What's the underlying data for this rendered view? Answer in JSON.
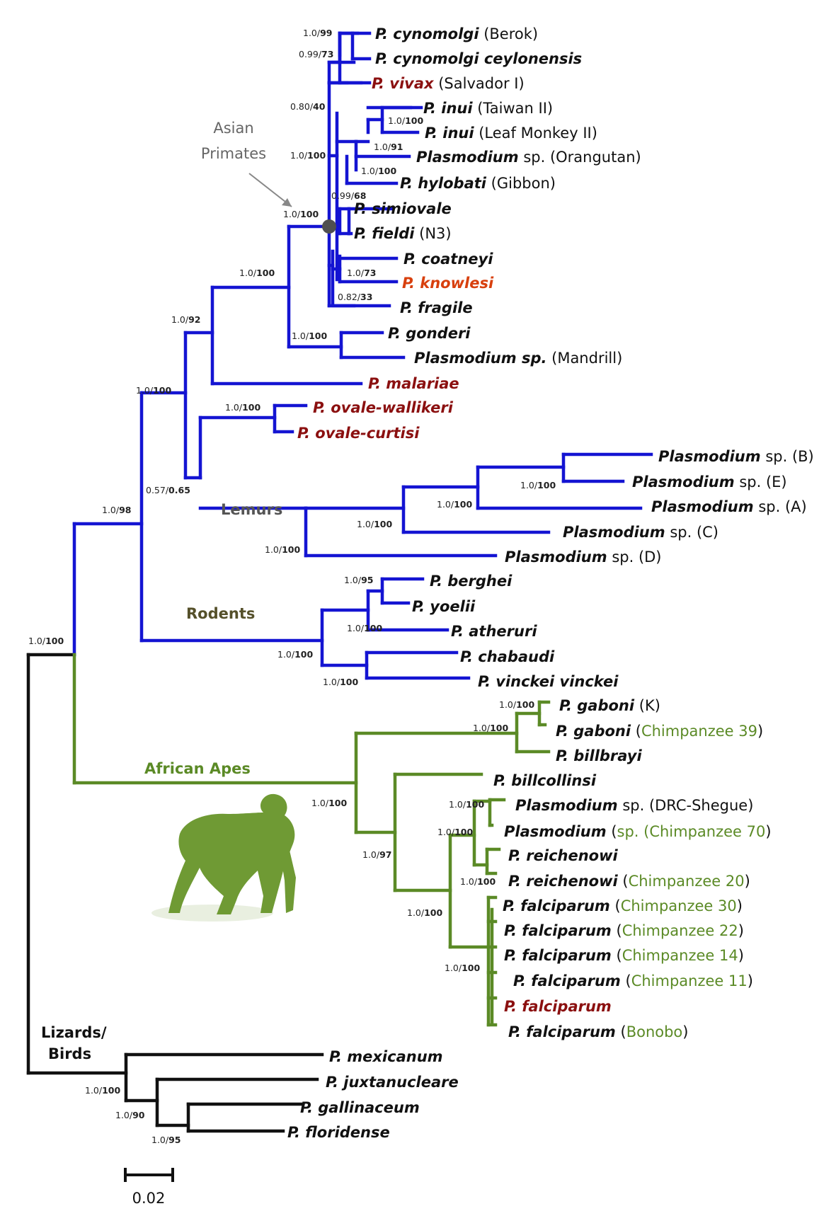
{
  "colors": {
    "blue": "#1414d2",
    "green": "#5b8a26",
    "black": "#111111",
    "red": "#8b1010",
    "orange": "#d8400e",
    "gray": "#666666",
    "node": "#505050"
  },
  "groups": {
    "asian_primates": "Asian\nPrimates",
    "lemurs": "Lemurs",
    "rodents": "Rodents",
    "african_apes": "African Apes",
    "lizards_birds": "Lizards/\nBirds"
  },
  "scale": {
    "label": "0.02"
  },
  "chimp_icon": "chimpanzee-silhouette-icon",
  "supports": [
    {
      "id": "s1",
      "text": "1.0/99"
    },
    {
      "id": "s2",
      "text": "0.99/73"
    },
    {
      "id": "s3",
      "text": "0.80/40"
    },
    {
      "id": "s4",
      "text": "1.0/100"
    },
    {
      "id": "s5",
      "text": "1.0/91"
    },
    {
      "id": "s6",
      "text": "1.0/100"
    },
    {
      "id": "s7",
      "text": "0.99/68"
    },
    {
      "id": "s8",
      "text": "1.0/100"
    },
    {
      "id": "s9",
      "text": "1.0/73"
    },
    {
      "id": "s10",
      "text": "0.82/33"
    },
    {
      "id": "s11",
      "text": "1.0/100"
    },
    {
      "id": "s12",
      "text": "1.0/100"
    },
    {
      "id": "s13",
      "text": "1.0/100"
    },
    {
      "id": "s14",
      "text": "1.0/92"
    },
    {
      "id": "s15",
      "text": "1.0/100"
    },
    {
      "id": "s16",
      "text": "1.0/100"
    },
    {
      "id": "s17",
      "text": "0.57/0.65"
    },
    {
      "id": "s18",
      "text": "1.0/100"
    },
    {
      "id": "s19",
      "text": "1.0/100"
    },
    {
      "id": "s20",
      "text": "1.0/100"
    },
    {
      "id": "s21",
      "text": "1.0/100"
    },
    {
      "id": "s22",
      "text": "1.0/98"
    },
    {
      "id": "s23",
      "text": "1.0/95"
    },
    {
      "id": "s24",
      "text": "1.0/100"
    },
    {
      "id": "s25",
      "text": "1.0/100"
    },
    {
      "id": "s26",
      "text": "1.0/100"
    },
    {
      "id": "s27",
      "text": "1.0/100"
    },
    {
      "id": "s28",
      "text": "1.0/100"
    },
    {
      "id": "s29",
      "text": "1.0/100"
    },
    {
      "id": "s30",
      "text": "1.0/100"
    },
    {
      "id": "s31",
      "text": "1.0/100"
    },
    {
      "id": "s32",
      "text": "1.0/100"
    },
    {
      "id": "s33",
      "text": "1.0/100"
    },
    {
      "id": "s34",
      "text": "1.0/97"
    },
    {
      "id": "s35",
      "text": "1.0/100"
    },
    {
      "id": "s36",
      "text": "1.0/100"
    },
    {
      "id": "s37",
      "text": "1.0/100"
    },
    {
      "id": "s38",
      "text": "1.0/90"
    },
    {
      "id": "s39",
      "text": "1.0/95"
    }
  ],
  "taxa": [
    {
      "id": "t1",
      "sp": "P. cynomolgi",
      "note": "(Berok)",
      "noteColor": "black"
    },
    {
      "id": "t2",
      "sp": "P. cynomolgi  ceylonensis",
      "note": "",
      "noteColor": "black"
    },
    {
      "id": "t3",
      "sp": "P. vivax",
      "note": "(Salvador I)",
      "noteColor": "black",
      "spColor": "red"
    },
    {
      "id": "t4",
      "sp": "P. inui",
      "note": "(Taiwan II)",
      "noteColor": "black"
    },
    {
      "id": "t5",
      "sp": "P. inui",
      "note": "(Leaf Monkey II)",
      "noteColor": "black"
    },
    {
      "id": "t6",
      "sp": "Plasmodium",
      "note": "sp. (Orangutan)",
      "noteColor": "black"
    },
    {
      "id": "t7",
      "sp": "P. hylobati",
      "note": "(Gibbon)",
      "noteColor": "black"
    },
    {
      "id": "t8",
      "sp": "P. simiovale",
      "note": "",
      "noteColor": "black"
    },
    {
      "id": "t9",
      "sp": "P. fieldi",
      "note": "(N3)",
      "noteColor": "black"
    },
    {
      "id": "t10",
      "sp": "P. coatneyi",
      "note": "",
      "noteColor": "black"
    },
    {
      "id": "t11",
      "sp": "P. knowlesi",
      "note": "",
      "noteColor": "black",
      "spColor": "orange"
    },
    {
      "id": "t12",
      "sp": "P. fragile",
      "note": "",
      "noteColor": "black"
    },
    {
      "id": "t13",
      "sp": "P. gonderi",
      "note": "",
      "noteColor": "black"
    },
    {
      "id": "t14",
      "sp": "Plasmodium sp.",
      "note": "(Mandrill)",
      "noteColor": "black"
    },
    {
      "id": "t15",
      "sp": "P. malariae",
      "note": "",
      "noteColor": "black",
      "spColor": "red"
    },
    {
      "id": "t16",
      "sp": "P. ovale-wallikeri",
      "note": "",
      "noteColor": "black",
      "spColor": "red"
    },
    {
      "id": "t17",
      "sp": "P. ovale-curtisi",
      "note": "",
      "noteColor": "black",
      "spColor": "red"
    },
    {
      "id": "t18",
      "sp": "Plasmodium",
      "note": "sp. (B)",
      "noteColor": "black"
    },
    {
      "id": "t19",
      "sp": "Plasmodium",
      "note": "sp. (E)",
      "noteColor": "black"
    },
    {
      "id": "t20",
      "sp": "Plasmodium",
      "note": "sp. (A)",
      "noteColor": "black"
    },
    {
      "id": "t21",
      "sp": "Plasmodium",
      "note": "sp. (C)",
      "noteColor": "black"
    },
    {
      "id": "t22",
      "sp": "Plasmodium",
      "note": "sp. (D)",
      "noteColor": "black"
    },
    {
      "id": "t23",
      "sp": "P. berghei",
      "note": "",
      "noteColor": "black"
    },
    {
      "id": "t24",
      "sp": "P. yoelii",
      "note": "",
      "noteColor": "black"
    },
    {
      "id": "t25",
      "sp": "P. atheruri",
      "note": "",
      "noteColor": "black"
    },
    {
      "id": "t26",
      "sp": "P. chabaudi",
      "note": "",
      "noteColor": "black"
    },
    {
      "id": "t27",
      "sp": "P. vinckei vinckei",
      "note": "",
      "noteColor": "black"
    },
    {
      "id": "t28",
      "sp": "P. gaboni",
      "note": "(K)",
      "noteColor": "black"
    },
    {
      "id": "t29",
      "sp": "P. gaboni",
      "note": "(Chimpanzee 39)",
      "noteColor": "green",
      "paren": true
    },
    {
      "id": "t30",
      "sp": "P. billbrayi",
      "note": "",
      "noteColor": "black"
    },
    {
      "id": "t31",
      "sp": "P. billcollinsi",
      "note": "",
      "noteColor": "black"
    },
    {
      "id": "t32",
      "sp": "Plasmodium",
      "note": "sp. (DRC-Shegue)",
      "noteColor": "black"
    },
    {
      "id": "t33",
      "sp": "Plasmodium",
      "note": "sp. (Chimpanzee 70)",
      "noteColor": "green",
      "paren": true
    },
    {
      "id": "t34",
      "sp": "P. reichenowi",
      "note": "",
      "noteColor": "black"
    },
    {
      "id": "t35",
      "sp": "P. reichenowi",
      "note": "(Chimpanzee 20)",
      "noteColor": "green",
      "paren": true
    },
    {
      "id": "t36",
      "sp": "P. falciparum",
      "note": "(Chimpanzee 30)",
      "noteColor": "green",
      "paren": true
    },
    {
      "id": "t37",
      "sp": "P. falciparum",
      "note": "(Chimpanzee 22)",
      "noteColor": "green",
      "paren": true
    },
    {
      "id": "t38",
      "sp": "P. falciparum",
      "note": "(Chimpanzee 14)",
      "noteColor": "green",
      "paren": true
    },
    {
      "id": "t39",
      "sp": "P. falciparum",
      "note": "(Chimpanzee 11)",
      "noteColor": "green",
      "paren": true
    },
    {
      "id": "t40",
      "sp": "P. falciparum",
      "note": "",
      "noteColor": "black",
      "spColor": "red"
    },
    {
      "id": "t41",
      "sp": "P. falciparum",
      "note": "(Bonobo)",
      "noteColor": "green",
      "paren": true
    },
    {
      "id": "t42",
      "sp": "P. mexicanum",
      "note": "",
      "noteColor": "black"
    },
    {
      "id": "t43",
      "sp": "P. juxtanucleare",
      "note": "",
      "noteColor": "black"
    },
    {
      "id": "t44",
      "sp": "P. gallinaceum",
      "note": "",
      "noteColor": "black"
    },
    {
      "id": "t45",
      "sp": "P. floridense",
      "note": "",
      "noteColor": "black"
    }
  ]
}
